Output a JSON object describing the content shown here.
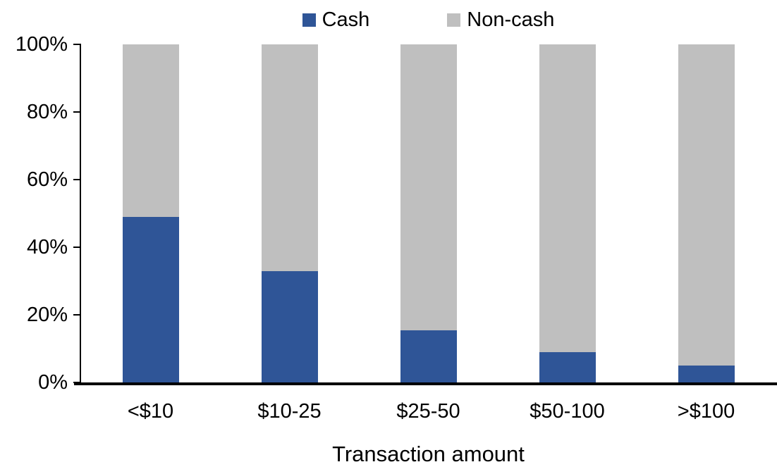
{
  "chart_data": {
    "type": "bar",
    "variant": "stacked-100-percent",
    "title": "",
    "xlabel": "Transaction amount",
    "ylabel": "",
    "categories": [
      "<$10",
      "$10-25",
      "$25-50",
      "$50-100",
      ">$100"
    ],
    "series": [
      {
        "name": "Cash",
        "color": "#2F5597",
        "values": [
          49,
          33,
          15.5,
          9,
          5
        ]
      },
      {
        "name": "Non-cash",
        "color": "#BFBFBF",
        "values": [
          51,
          67,
          84.5,
          91,
          95
        ]
      }
    ],
    "y_axis": {
      "min": 0,
      "max": 100,
      "step": 20,
      "tick_labels": [
        "0%",
        "20%",
        "40%",
        "60%",
        "80%",
        "100%"
      ]
    },
    "legend": {
      "position": "top-center",
      "entries": [
        {
          "label": "Cash",
          "color": "#2F5597"
        },
        {
          "label": "Non-cash",
          "color": "#BFBFBF"
        }
      ]
    },
    "grid": false,
    "axis_color": "#000000",
    "background_color": "#FFFFFF"
  }
}
